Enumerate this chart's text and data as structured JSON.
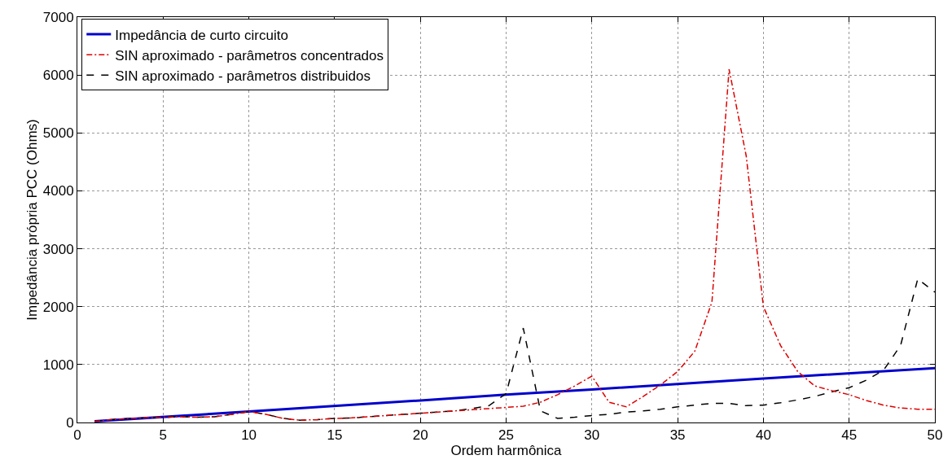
{
  "chart_data": {
    "type": "line",
    "xlabel": "Ordem harmônica",
    "ylabel": "Impedância própria PCC (Ohms)",
    "xlim": [
      0,
      50
    ],
    "xticks": [
      0,
      5,
      10,
      15,
      20,
      25,
      30,
      35,
      40,
      45,
      50
    ],
    "ylim": [
      0,
      7000
    ],
    "yticks": [
      0,
      1000,
      2000,
      3000,
      4000,
      5000,
      6000,
      7000
    ],
    "grid": true,
    "legend": "top left",
    "marker": "none",
    "series": [
      {
        "name": "Impedância de curto circuito",
        "color": "#0000cc",
        "line_style": "solid",
        "x": [
          1,
          10,
          20,
          25,
          30,
          40,
          50
        ],
        "values": [
          20,
          190,
          380,
          480,
          570,
          760,
          940
        ]
      },
      {
        "name": "SIN aproximado - parâmetros concentrados",
        "color": "#dd0000",
        "line_style": "dashdot",
        "x": [
          1,
          2,
          3,
          4,
          5,
          6,
          7,
          8,
          9,
          10,
          11,
          12,
          13,
          14,
          15,
          16,
          17,
          18,
          19,
          20,
          21,
          22,
          23,
          24,
          25,
          26,
          27,
          28,
          29,
          30,
          31,
          32,
          33,
          34,
          35,
          36,
          37,
          38,
          39,
          40,
          41,
          42,
          43,
          44,
          45,
          46,
          47,
          48,
          49,
          50
        ],
        "values": [
          20,
          50,
          70,
          80,
          90,
          100,
          90,
          100,
          140,
          190,
          140,
          70,
          40,
          50,
          70,
          80,
          100,
          120,
          140,
          160,
          180,
          200,
          220,
          240,
          260,
          280,
          350,
          480,
          630,
          800,
          350,
          270,
          450,
          650,
          880,
          1230,
          2080,
          6100,
          4600,
          2000,
          1330,
          880,
          630,
          550,
          480,
          380,
          300,
          250,
          230,
          230
        ]
      },
      {
        "name": "SIN aproximado - parâmetros distribuidos",
        "color": "#000000",
        "line_style": "dashed",
        "x": [
          1,
          2,
          3,
          4,
          5,
          6,
          7,
          8,
          9,
          10,
          11,
          12,
          13,
          14,
          15,
          16,
          17,
          18,
          19,
          20,
          21,
          22,
          23,
          24,
          25,
          26,
          27,
          28,
          29,
          30,
          31,
          32,
          33,
          34,
          35,
          36,
          37,
          38,
          39,
          40,
          41,
          42,
          43,
          44,
          45,
          46,
          47,
          48,
          49,
          50
        ],
        "values": [
          20,
          50,
          70,
          80,
          90,
          100,
          90,
          100,
          140,
          190,
          140,
          70,
          40,
          50,
          70,
          80,
          100,
          120,
          140,
          160,
          180,
          200,
          240,
          290,
          500,
          1630,
          200,
          70,
          90,
          120,
          140,
          180,
          200,
          230,
          270,
          300,
          330,
          330,
          290,
          300,
          340,
          390,
          450,
          530,
          600,
          730,
          900,
          1330,
          2480,
          2250
        ]
      }
    ]
  }
}
